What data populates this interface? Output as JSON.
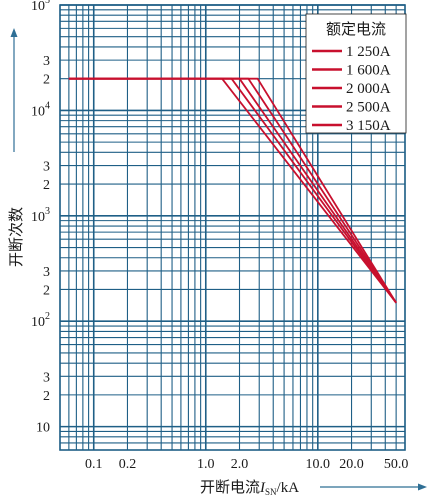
{
  "chart_data": {
    "type": "line",
    "x_scale": "log",
    "y_scale": "log",
    "xlim": [
      0.05,
      60
    ],
    "ylim": [
      6,
      100000
    ],
    "xlabel": "开断电流",
    "xlabel_var": "I",
    "xlabel_sub": "SN",
    "xlabel_unit": "/kA",
    "ylabel": "开断次数",
    "grid": true,
    "legend_title": "额定电流",
    "legend_position": "top-right",
    "x_ticks": [
      {
        "value": 0.1,
        "label": "0.1"
      },
      {
        "value": 0.2,
        "label": "0.2"
      },
      {
        "value": 1.0,
        "label": "1.0"
      },
      {
        "value": 2.0,
        "label": "2.0"
      },
      {
        "value": 10.0,
        "label": "10.0"
      },
      {
        "value": 20.0,
        "label": "20.0"
      },
      {
        "value": 50.0,
        "label": "50.0"
      }
    ],
    "y_ticks": [
      {
        "value": 100000,
        "base": "10",
        "exp": "5"
      },
      {
        "value": 30000,
        "label": "3"
      },
      {
        "value": 20000,
        "label": "2"
      },
      {
        "value": 10000,
        "base": "10",
        "exp": "4"
      },
      {
        "value": 3000,
        "label": "3"
      },
      {
        "value": 2000,
        "label": "2"
      },
      {
        "value": 1000,
        "base": "10",
        "exp": "3"
      },
      {
        "value": 300,
        "label": "3"
      },
      {
        "value": 200,
        "label": "2"
      },
      {
        "value": 100,
        "base": "10",
        "exp": "2"
      },
      {
        "value": 30,
        "label": "3"
      },
      {
        "value": 20,
        "label": "2"
      },
      {
        "value": 10,
        "label": "10"
      }
    ],
    "series": [
      {
        "name": "1 250A",
        "x": [
          0.06,
          1.4,
          50.0
        ],
        "y": [
          20000,
          20000,
          150
        ]
      },
      {
        "name": "1 600A",
        "x": [
          0.06,
          1.7,
          50.0
        ],
        "y": [
          20000,
          20000,
          150
        ]
      },
      {
        "name": "2 000A",
        "x": [
          0.06,
          2.0,
          50.0
        ],
        "y": [
          20000,
          20000,
          150
        ]
      },
      {
        "name": "2 500A",
        "x": [
          0.06,
          2.4,
          50.0
        ],
        "y": [
          20000,
          20000,
          150
        ]
      },
      {
        "name": "3 150A",
        "x": [
          0.06,
          2.9,
          50.0
        ],
        "y": [
          20000,
          20000,
          150
        ]
      }
    ],
    "colors": {
      "line": "#c8102e",
      "grid": "#1f5f86",
      "axis_arrow": "#2f6f95"
    }
  }
}
